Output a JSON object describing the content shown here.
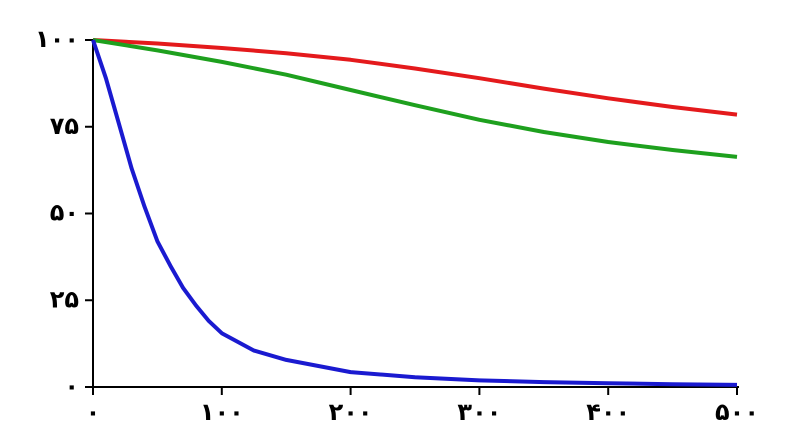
{
  "chart_data": {
    "type": "line",
    "xlim": [
      0,
      500
    ],
    "ylim": [
      0,
      100
    ],
    "xticks": [
      {
        "value": 0,
        "label": "۰"
      },
      {
        "value": 100,
        "label": "۱۰۰"
      },
      {
        "value": 200,
        "label": "۲۰۰"
      },
      {
        "value": 300,
        "label": "۳۰۰"
      },
      {
        "value": 400,
        "label": "۴۰۰"
      },
      {
        "value": 500,
        "label": "۵۰۰"
      }
    ],
    "yticks": [
      {
        "value": 0,
        "label": "۰"
      },
      {
        "value": 25,
        "label": "۲۵"
      },
      {
        "value": 50,
        "label": "۵۰"
      },
      {
        "value": 75,
        "label": "۷۵"
      },
      {
        "value": 100,
        "label": "۱۰۰"
      }
    ],
    "series": [
      {
        "color": "#e41a1c",
        "x": [
          0,
          50,
          100,
          150,
          200,
          250,
          300,
          350,
          400,
          450,
          500
        ],
        "values": [
          100,
          99,
          97.7,
          96.2,
          94.3,
          91.8,
          89,
          86,
          83.2,
          80.7,
          78.5
        ]
      },
      {
        "color": "#1ea01e",
        "x": [
          0,
          50,
          100,
          150,
          200,
          250,
          300,
          350,
          400,
          450,
          500
        ],
        "values": [
          100,
          97,
          93.7,
          90,
          85.6,
          81.2,
          77,
          73.5,
          70.6,
          68.3,
          66.3
        ]
      },
      {
        "color": "#1a1ad0",
        "x": [
          0,
          10,
          20,
          30,
          40,
          50,
          60,
          70,
          80,
          90,
          100,
          125,
          150,
          200,
          250,
          300,
          350,
          400,
          450,
          500
        ],
        "values": [
          100,
          89,
          76,
          63,
          52,
          42,
          35,
          28.5,
          23.5,
          19,
          15.5,
          10.5,
          7.8,
          4.3,
          2.8,
          1.9,
          1.4,
          1.1,
          0.8,
          0.6
        ]
      }
    ]
  }
}
